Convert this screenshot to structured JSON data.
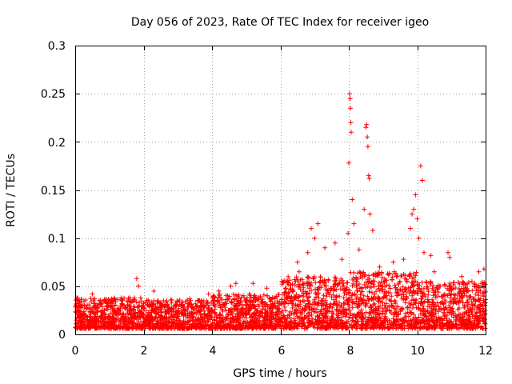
{
  "chart_data": {
    "type": "scatter",
    "title": "Day 056 of 2023, Rate Of TEC Index for receiver igeo",
    "xlabel": "GPS time / hours",
    "ylabel": "ROTI / TECUs",
    "xlim": [
      0,
      12
    ],
    "ylim": [
      0,
      0.3
    ],
    "xticks": [
      0,
      2,
      4,
      6,
      8,
      10,
      12
    ],
    "yticks": [
      0,
      0.05,
      0.1,
      0.15,
      0.2,
      0.25,
      0.3
    ],
    "xtick_labels": [
      "0",
      "2",
      "4",
      "6",
      "8",
      "10",
      "12"
    ],
    "ytick_labels": [
      "0",
      "0.05",
      "0.1",
      "0.15",
      "0.2",
      "0.25",
      "0.3"
    ],
    "grid": true,
    "marker": "+",
    "color": "#ff0000",
    "series": [
      {
        "name": "ROTI",
        "points": [
          [
            0.05,
            0.038
          ],
          [
            0.1,
            0.03
          ],
          [
            0.15,
            0.02
          ],
          [
            0.5,
            0.042
          ],
          [
            0.7,
            0.035
          ],
          [
            1.05,
            0.033
          ],
          [
            1.35,
            0.038
          ],
          [
            1.8,
            0.058
          ],
          [
            1.85,
            0.05
          ],
          [
            2.3,
            0.045
          ],
          [
            3.35,
            0.037
          ],
          [
            3.9,
            0.042
          ],
          [
            4.2,
            0.045
          ],
          [
            4.55,
            0.05
          ],
          [
            4.7,
            0.053
          ],
          [
            5.2,
            0.053
          ],
          [
            5.6,
            0.048
          ],
          [
            6.5,
            0.075
          ],
          [
            6.55,
            0.065
          ],
          [
            6.8,
            0.085
          ],
          [
            6.9,
            0.11
          ],
          [
            7.0,
            0.1
          ],
          [
            7.1,
            0.115
          ],
          [
            7.3,
            0.09
          ],
          [
            7.6,
            0.095
          ],
          [
            7.8,
            0.078
          ],
          [
            7.98,
            0.105
          ],
          [
            8.0,
            0.178
          ],
          [
            8.02,
            0.25
          ],
          [
            8.04,
            0.245
          ],
          [
            8.05,
            0.235
          ],
          [
            8.06,
            0.22
          ],
          [
            8.07,
            0.21
          ],
          [
            8.1,
            0.14
          ],
          [
            8.15,
            0.115
          ],
          [
            8.3,
            0.088
          ],
          [
            8.45,
            0.13
          ],
          [
            8.5,
            0.215
          ],
          [
            8.52,
            0.218
          ],
          [
            8.54,
            0.205
          ],
          [
            8.56,
            0.195
          ],
          [
            8.58,
            0.165
          ],
          [
            8.6,
            0.162
          ],
          [
            8.62,
            0.125
          ],
          [
            8.7,
            0.108
          ],
          [
            8.9,
            0.07
          ],
          [
            9.3,
            0.075
          ],
          [
            9.6,
            0.078
          ],
          [
            9.8,
            0.11
          ],
          [
            9.85,
            0.125
          ],
          [
            9.9,
            0.13
          ],
          [
            9.95,
            0.145
          ],
          [
            10.0,
            0.12
          ],
          [
            10.05,
            0.1
          ],
          [
            10.1,
            0.175
          ],
          [
            10.15,
            0.16
          ],
          [
            10.2,
            0.085
          ],
          [
            10.4,
            0.082
          ],
          [
            10.5,
            0.065
          ],
          [
            10.9,
            0.085
          ],
          [
            10.95,
            0.08
          ],
          [
            11.3,
            0.06
          ],
          [
            11.6,
            0.055
          ],
          [
            11.8,
            0.065
          ],
          [
            11.95,
            0.068
          ]
        ]
      }
    ],
    "noise_band": {
      "description": "dense background scatter of ROTI values",
      "segments": [
        {
          "x": [
            0,
            2
          ],
          "y": [
            0.006,
            0.038
          ]
        },
        {
          "x": [
            2,
            4
          ],
          "y": [
            0.006,
            0.036
          ]
        },
        {
          "x": [
            4,
            6
          ],
          "y": [
            0.006,
            0.042
          ]
        },
        {
          "x": [
            6,
            8
          ],
          "y": [
            0.006,
            0.06
          ]
        },
        {
          "x": [
            8,
            10
          ],
          "y": [
            0.006,
            0.065
          ]
        },
        {
          "x": [
            10,
            12
          ],
          "y": [
            0.006,
            0.055
          ]
        }
      ],
      "count": 3600
    }
  }
}
